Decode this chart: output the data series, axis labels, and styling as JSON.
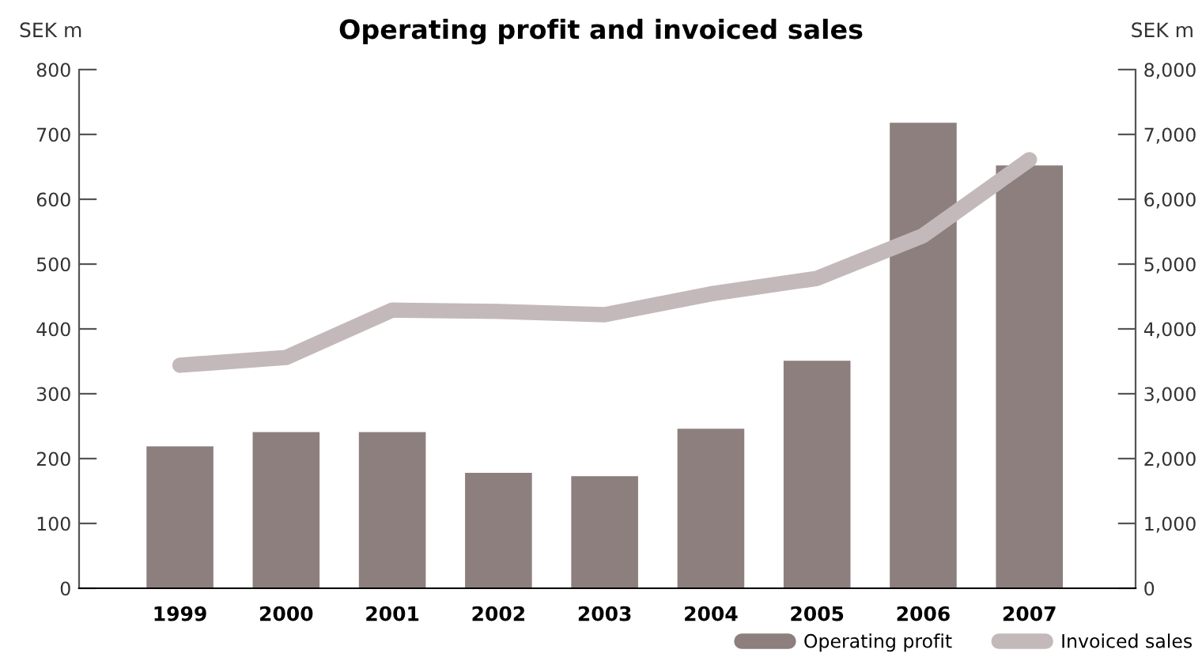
{
  "chart_data": {
    "type": "bar",
    "title": "Operating profit and invoiced sales",
    "ylabel": "SEK m",
    "y2label": "SEK m",
    "categories": [
      "1999",
      "2000",
      "2001",
      "2002",
      "2003",
      "2004",
      "2005",
      "2006",
      "2007"
    ],
    "series": [
      {
        "name": "Operating profit",
        "color": "#8c7f7e",
        "values": [
          219,
          241,
          241,
          178,
          173,
          246,
          351,
          718,
          652
        ]
      },
      {
        "name": "Invoiced sales",
        "type": "line",
        "axis": "y2",
        "color": "#c4b9ba",
        "values": [
          3440,
          3560,
          4290,
          4270,
          4220,
          4540,
          4780,
          5440,
          6610
        ]
      }
    ],
    "ylim": [
      0,
      800
    ],
    "yticks": [
      0,
      100,
      200,
      300,
      400,
      500,
      600,
      700,
      800
    ],
    "y2lim": [
      0,
      8000
    ],
    "y2ticks": [
      0,
      {
        "value": 1000,
        "label": "1,000"
      },
      {
        "value": 2000,
        "label": "2,000"
      },
      {
        "value": 3000,
        "label": "3,000"
      },
      {
        "value": 4000,
        "label": "4,000"
      },
      {
        "value": 5000,
        "label": "5,000"
      },
      {
        "value": 6000,
        "label": "6,000"
      },
      {
        "value": 7000,
        "label": "7,000"
      },
      {
        "value": 8000,
        "label": "8,000"
      }
    ],
    "grid": false,
    "legend": "bottom right",
    "marker": "none",
    "line_style": "solid"
  }
}
